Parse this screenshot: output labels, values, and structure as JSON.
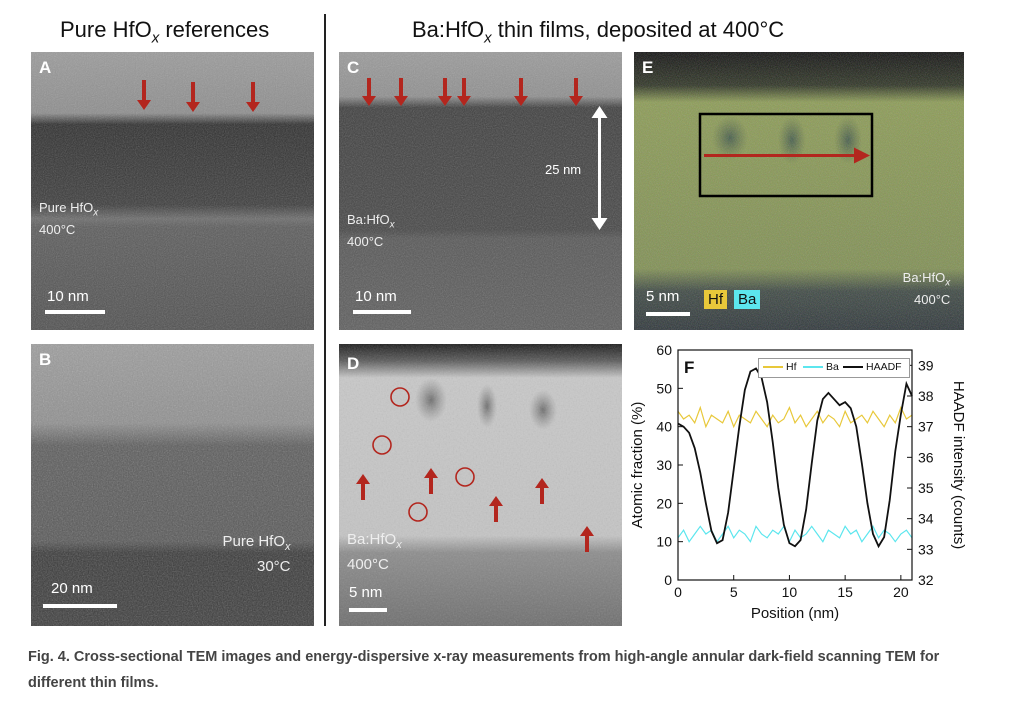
{
  "headings": {
    "left": "Pure HfO",
    "left_sub": "x",
    "left_tail": " references",
    "right": "Ba:HfO",
    "right_sub": "x",
    "right_tail": " thin films, deposited at 400°C"
  },
  "panels": {
    "A": {
      "letter": "A",
      "sample": "Pure HfO",
      "sample_sub": "x",
      "temp": "400°C",
      "scale": "10 nm"
    },
    "B": {
      "letter": "B",
      "sample": "Pure HfO",
      "sample_sub": "x",
      "temp": "30°C",
      "scale": "20 nm"
    },
    "C": {
      "letter": "C",
      "sample": "Ba:HfO",
      "sample_sub": "x",
      "temp": "400°C",
      "scale": "10 nm",
      "thickness": "25 nm"
    },
    "D": {
      "letter": "D",
      "sample": "Ba:HfO",
      "sample_sub": "x",
      "temp": "400°C",
      "scale": "5 nm"
    },
    "E": {
      "letter": "E",
      "sample": "Ba:HfO",
      "sample_sub": "x",
      "temp": "400°C",
      "scale": "5 nm",
      "hf_label": "Hf",
      "ba_label": "Ba"
    },
    "F": {
      "letter": "F"
    }
  },
  "colors": {
    "arrow_red": "#b3261e",
    "hf": "#e8c83a",
    "ba": "#5ce6ee",
    "haadf": "#111111",
    "map_green": "#8a9a52"
  },
  "chart_data": {
    "type": "line",
    "x": [
      0,
      0.5,
      1,
      1.5,
      2,
      2.5,
      3,
      3.5,
      4,
      4.5,
      5,
      5.5,
      6,
      6.5,
      7,
      7.5,
      8,
      8.5,
      9,
      9.5,
      10,
      10.5,
      11,
      11.5,
      12,
      12.5,
      13,
      13.5,
      14,
      14.5,
      15,
      15.5,
      16,
      16.5,
      17,
      17.5,
      18,
      18.5,
      19,
      19.5,
      20,
      20.5,
      21
    ],
    "xlabel": "Position (nm)",
    "xlim": [
      0,
      21
    ],
    "xticks": [
      0,
      5,
      10,
      15,
      20
    ],
    "ylabel_left": "Atomic fraction (%)",
    "ylim_left": [
      0,
      60
    ],
    "yticks_left": [
      0,
      10,
      20,
      30,
      40,
      50,
      60
    ],
    "ylabel_right": "HAADF intensity (counts)",
    "ylim_right": [
      32,
      39.5
    ],
    "yticks_right": [
      32,
      33,
      34,
      35,
      36,
      37,
      38,
      39
    ],
    "legend_position": "top",
    "series": [
      {
        "name": "Hf",
        "axis": "left",
        "values": [
          44,
          42,
          43,
          41,
          45,
          40,
          43,
          42,
          41,
          44,
          40,
          43,
          42,
          41,
          44,
          42,
          40,
          43,
          41,
          42,
          45,
          41,
          43,
          40,
          42,
          44,
          41,
          43,
          42,
          40,
          44,
          41,
          42,
          43,
          41,
          44,
          42,
          40,
          43,
          41,
          45,
          42,
          43
        ]
      },
      {
        "name": "Ba",
        "axis": "left",
        "values": [
          11,
          13,
          10,
          12,
          14,
          12,
          13,
          10,
          12,
          14,
          11,
          13,
          12,
          10,
          14,
          12,
          11,
          13,
          12,
          14,
          10,
          13,
          11,
          12,
          14,
          12,
          10,
          13,
          12,
          11,
          14,
          12,
          13,
          10,
          12,
          14,
          11,
          13,
          12,
          10,
          12,
          13,
          11
        ]
      },
      {
        "name": "HAADF",
        "axis": "right",
        "values": [
          37.1,
          37.0,
          36.8,
          36.3,
          35.5,
          34.5,
          33.6,
          33.2,
          33.3,
          34.2,
          35.6,
          37.0,
          38.2,
          38.8,
          38.9,
          38.6,
          37.8,
          36.5,
          35.0,
          33.8,
          33.2,
          33.1,
          33.3,
          34.3,
          35.8,
          37.2,
          37.9,
          38.1,
          37.9,
          37.7,
          37.8,
          37.6,
          37.0,
          35.8,
          34.5,
          33.5,
          33.1,
          33.4,
          34.6,
          36.2,
          37.4,
          38.4,
          38.0
        ]
      }
    ]
  },
  "caption": {
    "figno": "Fig. 4.",
    "text": " Cross-sectional TEM images and energy-dispersive x-ray measurements from high-angle annular dark-field scanning TEM for different thin films."
  }
}
